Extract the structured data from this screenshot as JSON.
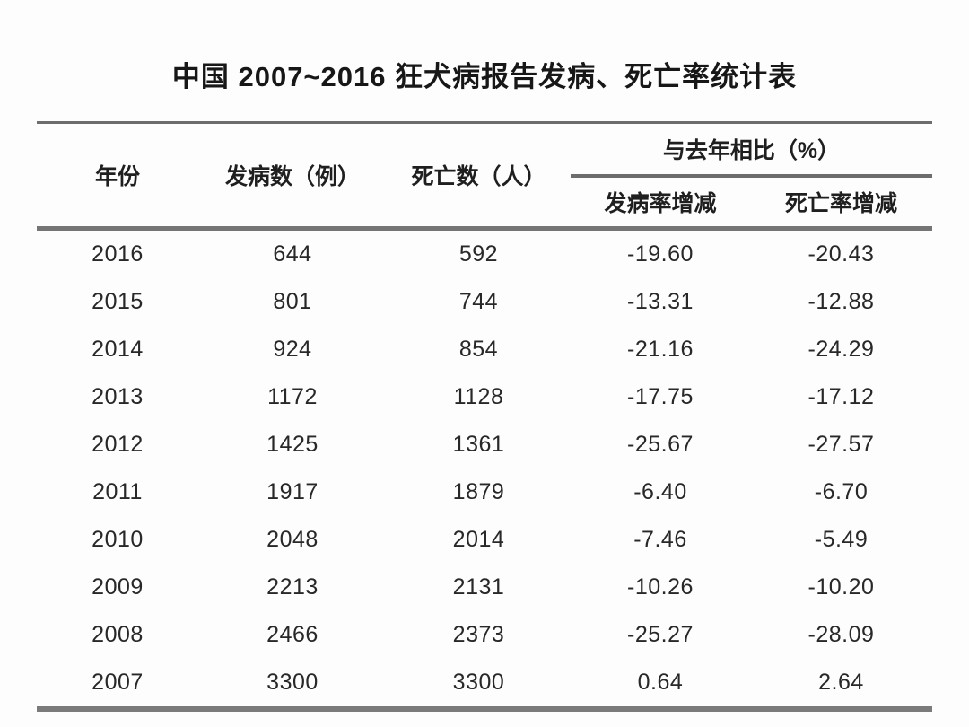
{
  "title": "中国 2007~2016 狂犬病报告发病、死亡率统计表",
  "table": {
    "headers": {
      "year": "年份",
      "cases": "发病数（例）",
      "deaths": "死亡数（人）",
      "group": "与去年相比（%）",
      "incidence_change": "发病率增减",
      "mortality_change": "死亡率增减"
    },
    "rows": [
      [
        "2016",
        "644",
        "592",
        "-19.60",
        "-20.43"
      ],
      [
        "2015",
        "801",
        "744",
        "-13.31",
        "-12.88"
      ],
      [
        "2014",
        "924",
        "854",
        "-21.16",
        "-24.29"
      ],
      [
        "2013",
        "1172",
        "1128",
        "-17.75",
        "-17.12"
      ],
      [
        "2012",
        "1425",
        "1361",
        "-25.67",
        "-27.57"
      ],
      [
        "2011",
        "1917",
        "1879",
        "-6.40",
        "-6.70"
      ],
      [
        "2010",
        "2048",
        "2014",
        "-7.46",
        "-5.49"
      ],
      [
        "2009",
        "2213",
        "2131",
        "-10.26",
        "-10.20"
      ],
      [
        "2008",
        "2466",
        "2373",
        "-25.27",
        "-28.09"
      ],
      [
        "2007",
        "3300",
        "3300",
        "0.64",
        "2.64"
      ]
    ]
  },
  "chart_data": {
    "type": "table",
    "title": "中国 2007~2016 狂犬病报告发病、死亡率统计表",
    "columns": [
      "年份",
      "发病数（例）",
      "死亡数（人）",
      "与去年相比（%）发病率增减",
      "与去年相比（%）死亡率增减"
    ],
    "years": [
      2016,
      2015,
      2014,
      2013,
      2012,
      2011,
      2010,
      2009,
      2008,
      2007
    ],
    "cases": [
      644,
      801,
      924,
      1172,
      1425,
      1917,
      2048,
      2213,
      2466,
      3300
    ],
    "deaths": [
      592,
      744,
      854,
      1128,
      1361,
      1879,
      2014,
      2131,
      2373,
      3300
    ],
    "incidence_change_pct": [
      -19.6,
      -13.31,
      -21.16,
      -17.75,
      -25.67,
      -6.4,
      -7.46,
      -10.26,
      -25.27,
      0.64
    ],
    "mortality_change_pct": [
      -20.43,
      -12.88,
      -24.29,
      -17.12,
      -27.57,
      -6.7,
      -5.49,
      -10.2,
      -28.09,
      2.64
    ]
  },
  "colors": {
    "rule_thin": "#6d6d6d",
    "rule_thick": "#757575",
    "text": "#1c1c1c",
    "background": "#fdfdfd"
  }
}
